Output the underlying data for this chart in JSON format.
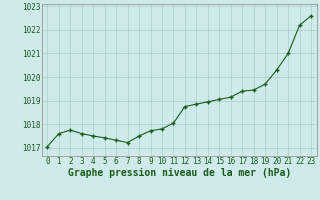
{
  "x": [
    0,
    1,
    2,
    3,
    4,
    5,
    6,
    7,
    8,
    9,
    10,
    11,
    12,
    13,
    14,
    15,
    16,
    17,
    18,
    19,
    20,
    21,
    22,
    23
  ],
  "y": [
    1017.05,
    1017.6,
    1017.75,
    1017.6,
    1017.5,
    1017.42,
    1017.32,
    1017.22,
    1017.5,
    1017.72,
    1017.8,
    1018.05,
    1018.75,
    1018.85,
    1018.95,
    1019.05,
    1019.15,
    1019.4,
    1019.45,
    1019.7,
    1020.3,
    1021.0,
    1022.2,
    1022.6
  ],
  "line_color": "#1a5c1a",
  "marker_color": "#1a5c1a",
  "bg_color": "#ceeaea",
  "grid_color": "#aacece",
  "xlabel": "Graphe pression niveau de la mer (hPa)",
  "xlabel_color": "#1a5c1a",
  "ylabel_ticks": [
    1017,
    1018,
    1019,
    1020,
    1021,
    1022,
    1023
  ],
  "ylim": [
    1016.65,
    1023.1
  ],
  "xlim": [
    -0.5,
    23.5
  ],
  "tick_color": "#1a5c1a",
  "spine_color": "#888888",
  "tick_fontsize": 5.5,
  "label_fontsize": 7.0
}
